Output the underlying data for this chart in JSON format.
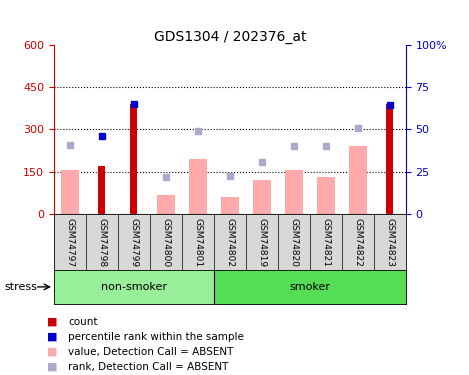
{
  "title": "GDS1304 / 202376_at",
  "samples": [
    "GSM74797",
    "GSM74798",
    "GSM74799",
    "GSM74800",
    "GSM74801",
    "GSM74802",
    "GSM74819",
    "GSM74820",
    "GSM74821",
    "GSM74822",
    "GSM74823"
  ],
  "count_values": [
    null,
    170,
    390,
    null,
    null,
    null,
    null,
    null,
    null,
    null,
    390
  ],
  "percentile_values": [
    null,
    275,
    390,
    null,
    null,
    null,
    null,
    null,
    null,
    null,
    385
  ],
  "value_absent": [
    155,
    null,
    null,
    65,
    195,
    60,
    120,
    155,
    130,
    240,
    null
  ],
  "rank_absent": [
    245,
    null,
    null,
    130,
    295,
    135,
    185,
    240,
    240,
    305,
    null
  ],
  "ylim_left": [
    0,
    600
  ],
  "yticks_left": [
    0,
    150,
    300,
    450,
    600
  ],
  "yticks_right": [
    0,
    25,
    50,
    75,
    100
  ],
  "yticklabels_right": [
    "0",
    "25",
    "50",
    "75",
    "100%"
  ],
  "left_axis_color": "#cc0000",
  "right_axis_color": "#0000cc",
  "count_color": "#cc0000",
  "percentile_color": "#0000cc",
  "value_absent_color": "#ffaaaa",
  "rank_absent_color": "#aaaacc",
  "ns_color": "#99ee99",
  "s_color": "#55dd55",
  "ns_count": 5,
  "stress_label": "stress"
}
